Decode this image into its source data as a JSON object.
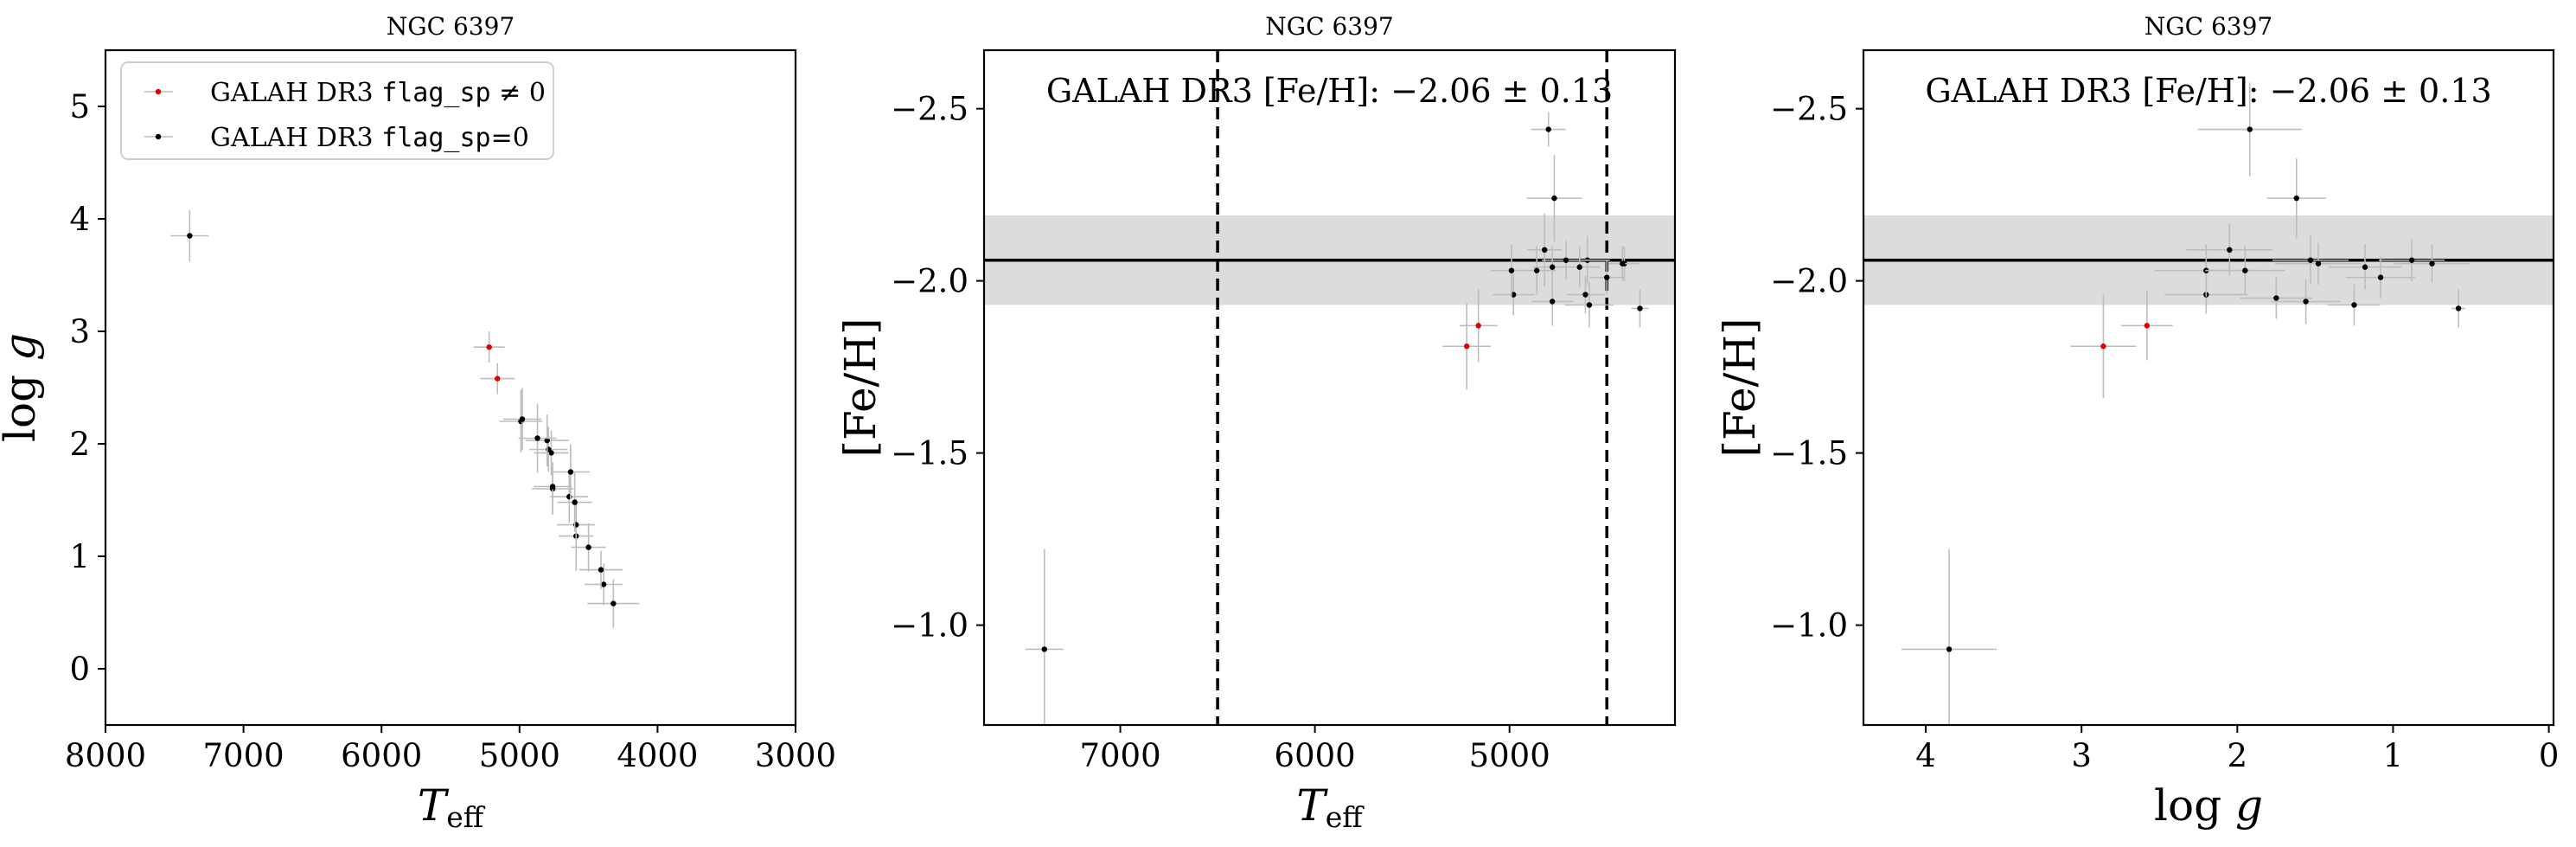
{
  "chart_data": [
    {
      "type": "scatter",
      "title": "NGC 6397",
      "xlabel": "T_eff",
      "ylabel": "log g",
      "xlim": [
        8000,
        3000
      ],
      "ylim": [
        5.5,
        -0.5
      ],
      "xticks": [
        "8000",
        "7000",
        "6000",
        "5000",
        "4000",
        "3000"
      ],
      "yticks": [
        "0",
        "1",
        "2",
        "3",
        "4",
        "5"
      ],
      "legend": {
        "position": "top-left",
        "entries": [
          {
            "prefix": "GALAH DR3 ",
            "code": "flag_sp",
            "suffix": " ≠ 0",
            "color": "#e00000"
          },
          {
            "prefix": "GALAH DR3 ",
            "code": "flag_sp",
            "suffix": "=0",
            "color": "#000000"
          }
        ]
      },
      "series": [
        {
          "name": "GALAH DR3 flag_sp ≠ 0",
          "color": "#e00000",
          "points": [
            [
              5160,
              2.58
            ],
            [
              5220,
              2.86
            ]
          ]
        },
        {
          "name": "GALAH DR3 flag_sp=0",
          "color": "#000000",
          "points": [
            [
              7390,
              3.85
            ],
            [
              4320,
              0.58
            ],
            [
              4390,
              0.75
            ],
            [
              4410,
              0.88
            ],
            [
              4500,
              1.08
            ],
            [
              4590,
              1.18
            ],
            [
              4590,
              1.28
            ],
            [
              4600,
              1.48
            ],
            [
              4640,
              1.53
            ],
            [
              4630,
              1.75
            ],
            [
              4760,
              1.6
            ],
            [
              4760,
              1.62
            ],
            [
              4770,
              1.92
            ],
            [
              4790,
              1.95
            ],
            [
              4800,
              2.03
            ],
            [
              4870,
              2.05
            ],
            [
              4990,
              2.2
            ],
            [
              4980,
              2.22
            ]
          ]
        }
      ]
    },
    {
      "type": "scatter",
      "title": "NGC 6397",
      "xlabel": "T_eff",
      "ylabel": "[Fe/H]",
      "xlim": [
        7700,
        4150
      ],
      "ylim": [
        -2.67,
        -0.71
      ],
      "xticks": [
        "7000",
        "6000",
        "5000"
      ],
      "yticks": [
        "−1.0",
        "−1.5",
        "−2.0",
        "−2.5"
      ],
      "annotation": "GALAH DR3 [Fe/H]: −2.06 ± 0.13",
      "reference": {
        "mean": -2.06,
        "sigma": 0.13,
        "vlines": [
          6500,
          4500
        ]
      },
      "series": [
        {
          "name": "GALAH DR3 flag_sp ≠ 0",
          "color": "#e00000",
          "points": [
            [
              5220,
              -1.81
            ],
            [
              5160,
              -1.87
            ]
          ]
        },
        {
          "name": "GALAH DR3 flag_sp=0",
          "color": "#000000",
          "points": [
            [
              7390,
              -0.93
            ],
            [
              4330,
              -1.92
            ],
            [
              4590,
              -1.93
            ],
            [
              4780,
              -1.94
            ],
            [
              4980,
              -1.96
            ],
            [
              4610,
              -1.96
            ],
            [
              4500,
              -2.01
            ],
            [
              4860,
              -2.03
            ],
            [
              4990,
              -2.03
            ],
            [
              4780,
              -2.04
            ],
            [
              4640,
              -2.04
            ],
            [
              4600,
              -2.06
            ],
            [
              4410,
              -2.05
            ],
            [
              4420,
              -2.05
            ],
            [
              4710,
              -2.06
            ],
            [
              4820,
              -2.09
            ],
            [
              4770,
              -2.24
            ],
            [
              4800,
              -2.44
            ]
          ]
        }
      ]
    },
    {
      "type": "scatter",
      "title": "NGC 6397",
      "xlabel": "log g",
      "ylabel": "[Fe/H]",
      "xlim": [
        4.4,
        -0.03
      ],
      "ylim": [
        -2.67,
        -0.71
      ],
      "xticks": [
        "4",
        "3",
        "2",
        "1",
        "0"
      ],
      "yticks": [
        "−1.0",
        "−1.5",
        "−2.0",
        "−2.5"
      ],
      "annotation": "GALAH DR3 [Fe/H]: −2.06 ± 0.13",
      "reference": {
        "mean": -2.06,
        "sigma": 0.13
      },
      "series": [
        {
          "name": "GALAH DR3 flag_sp ≠ 0",
          "color": "#e00000",
          "points": [
            [
              2.86,
              -1.81
            ],
            [
              2.58,
              -1.87
            ]
          ]
        },
        {
          "name": "GALAH DR3 flag_sp=0",
          "color": "#000000",
          "points": [
            [
              3.85,
              -0.93
            ],
            [
              0.58,
              -1.92
            ],
            [
              1.25,
              -1.93
            ],
            [
              1.56,
              -1.94
            ],
            [
              1.75,
              -1.95
            ],
            [
              2.2,
              -1.96
            ],
            [
              1.08,
              -2.01
            ],
            [
              2.2,
              -2.03
            ],
            [
              1.95,
              -2.03
            ],
            [
              1.18,
              -2.04
            ],
            [
              0.75,
              -2.05
            ],
            [
              1.48,
              -2.05
            ],
            [
              1.53,
              -2.06
            ],
            [
              0.88,
              -2.06
            ],
            [
              2.05,
              -2.09
            ],
            [
              1.62,
              -2.24
            ],
            [
              1.92,
              -2.44
            ]
          ]
        }
      ]
    }
  ]
}
